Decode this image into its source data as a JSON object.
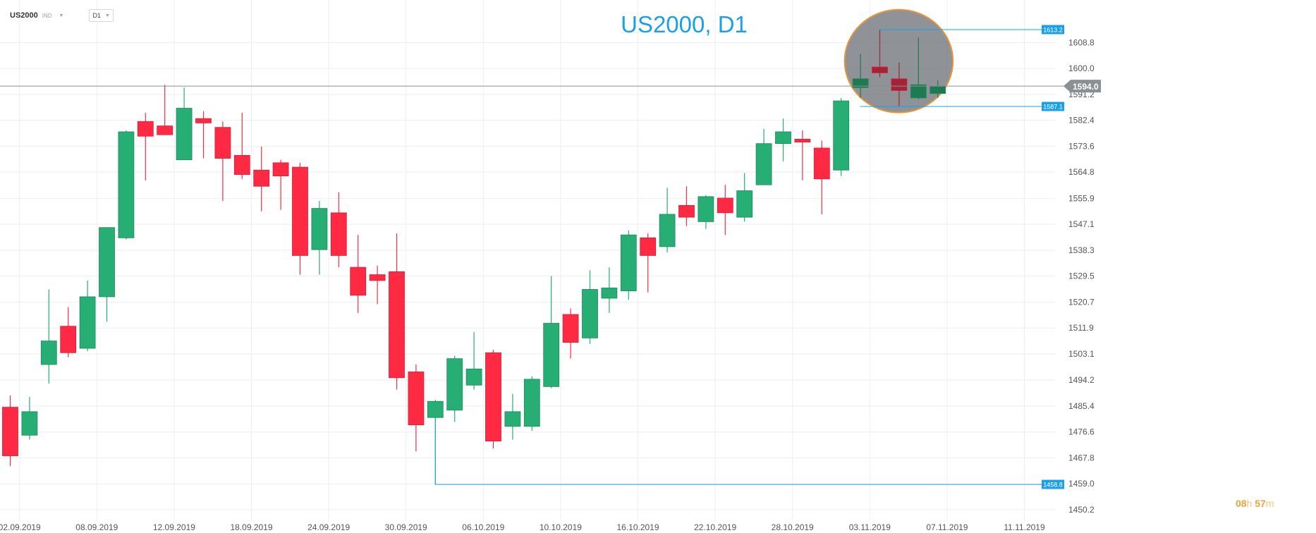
{
  "toolbar": {
    "symbol": "US2000",
    "symbol_type": "IND",
    "timeframe": "D1"
  },
  "title": "US2000, D1",
  "timer": {
    "hours": "08",
    "h_unit": "h",
    "minutes": "57",
    "m_unit": "m"
  },
  "colors": {
    "up": "#27ae74",
    "down": "#fe2a44",
    "accent": "#1ba0e8",
    "grid": "#eeeeee",
    "text": "#555555"
  },
  "chart_data": {
    "type": "candlestick",
    "title": "US2000, D1",
    "ylim": [
      1450.2,
      1617.5
    ],
    "y_ticks": [
      1608.8,
      1600.0,
      1591.2,
      1582.4,
      1573.6,
      1564.8,
      1555.9,
      1547.1,
      1538.3,
      1529.5,
      1520.7,
      1511.9,
      1503.1,
      1494.2,
      1485.4,
      1476.6,
      1467.8,
      1459.0,
      1450.2
    ],
    "x_labels": [
      "02.09.2019",
      "08.09.2019",
      "12.09.2019",
      "18.09.2019",
      "24.09.2019",
      "30.09.2019",
      "06.10.2019",
      "10.10.2019",
      "16.10.2019",
      "22.10.2019",
      "28.10.2019",
      "03.11.2019",
      "07.11.2019",
      "11.11.2019"
    ],
    "x_label_index": [
      0.5,
      4.5,
      8.5,
      12.5,
      16.5,
      20.5,
      24.5,
      28.5,
      32.5,
      36.5,
      40.5,
      44.5,
      48.5,
      52.5
    ],
    "candles": [
      {
        "o": 1485.0,
        "h": 1489.0,
        "l": 1465.0,
        "c": 1468.5
      },
      {
        "o": 1475.5,
        "h": 1488.5,
        "l": 1474.0,
        "c": 1483.5
      },
      {
        "o": 1499.5,
        "h": 1525.0,
        "l": 1493.0,
        "c": 1507.5
      },
      {
        "o": 1512.5,
        "h": 1519.0,
        "l": 1502.0,
        "c": 1503.5
      },
      {
        "o": 1505.0,
        "h": 1528.0,
        "l": 1504.0,
        "c": 1522.5
      },
      {
        "o": 1522.5,
        "h": 1546.0,
        "l": 1514.0,
        "c": 1546.0
      },
      {
        "o": 1542.5,
        "h": 1579.0,
        "l": 1542.0,
        "c": 1578.5
      },
      {
        "o": 1582.0,
        "h": 1585.0,
        "l": 1562.0,
        "c": 1577.0
      },
      {
        "o": 1580.5,
        "h": 1594.5,
        "l": 1578.0,
        "c": 1577.5
      },
      {
        "o": 1569.0,
        "h": 1593.5,
        "l": 1569.0,
        "c": 1586.5
      },
      {
        "o": 1583.0,
        "h": 1585.5,
        "l": 1569.5,
        "c": 1581.5
      },
      {
        "o": 1580.0,
        "h": 1582.0,
        "l": 1555.0,
        "c": 1569.5
      },
      {
        "o": 1570.5,
        "h": 1585.0,
        "l": 1562.5,
        "c": 1564.0
      },
      {
        "o": 1565.5,
        "h": 1573.5,
        "l": 1551.5,
        "c": 1560.0
      },
      {
        "o": 1568.0,
        "h": 1569.0,
        "l": 1552.0,
        "c": 1563.5
      },
      {
        "o": 1566.5,
        "h": 1568.0,
        "l": 1530.0,
        "c": 1536.5
      },
      {
        "o": 1538.5,
        "h": 1555.0,
        "l": 1530.0,
        "c": 1552.5
      },
      {
        "o": 1551.0,
        "h": 1558.0,
        "l": 1532.5,
        "c": 1536.5
      },
      {
        "o": 1532.5,
        "h": 1543.5,
        "l": 1517.0,
        "c": 1523.0
      },
      {
        "o": 1530.0,
        "h": 1533.0,
        "l": 1520.0,
        "c": 1528.0
      },
      {
        "o": 1531.0,
        "h": 1544.0,
        "l": 1491.0,
        "c": 1495.0
      },
      {
        "o": 1497.0,
        "h": 1499.5,
        "l": 1470.0,
        "c": 1479.0
      },
      {
        "o": 1481.5,
        "h": 1487.5,
        "l": 1458.8,
        "c": 1487.0
      },
      {
        "o": 1484.0,
        "h": 1502.5,
        "l": 1480.0,
        "c": 1501.5
      },
      {
        "o": 1492.5,
        "h": 1510.5,
        "l": 1491.0,
        "c": 1498.0
      },
      {
        "o": 1503.5,
        "h": 1504.5,
        "l": 1471.0,
        "c": 1473.5
      },
      {
        "o": 1478.5,
        "h": 1489.5,
        "l": 1474.0,
        "c": 1483.5
      },
      {
        "o": 1478.5,
        "h": 1495.5,
        "l": 1477.0,
        "c": 1494.5
      },
      {
        "o": 1492.0,
        "h": 1529.5,
        "l": 1491.5,
        "c": 1513.5
      },
      {
        "o": 1516.5,
        "h": 1518.5,
        "l": 1501.5,
        "c": 1507.0
      },
      {
        "o": 1508.5,
        "h": 1531.5,
        "l": 1506.5,
        "c": 1525.0
      },
      {
        "o": 1522.0,
        "h": 1532.5,
        "l": 1517.0,
        "c": 1525.5
      },
      {
        "o": 1524.5,
        "h": 1545.0,
        "l": 1521.5,
        "c": 1543.5
      },
      {
        "o": 1542.5,
        "h": 1544.0,
        "l": 1524.0,
        "c": 1536.5
      },
      {
        "o": 1539.5,
        "h": 1559.5,
        "l": 1537.5,
        "c": 1550.5
      },
      {
        "o": 1553.5,
        "h": 1560.0,
        "l": 1546.5,
        "c": 1549.5
      },
      {
        "o": 1548.0,
        "h": 1557.0,
        "l": 1545.5,
        "c": 1556.5
      },
      {
        "o": 1556.0,
        "h": 1560.5,
        "l": 1543.5,
        "c": 1551.0
      },
      {
        "o": 1549.5,
        "h": 1564.5,
        "l": 1548.0,
        "c": 1558.5
      },
      {
        "o": 1560.5,
        "h": 1579.5,
        "l": 1560.5,
        "c": 1574.5
      },
      {
        "o": 1574.5,
        "h": 1583.0,
        "l": 1568.5,
        "c": 1578.5
      },
      {
        "o": 1576.0,
        "h": 1579.0,
        "l": 1562.0,
        "c": 1575.0
      },
      {
        "o": 1573.0,
        "h": 1575.5,
        "l": 1550.5,
        "c": 1562.5
      },
      {
        "o": 1565.5,
        "h": 1590.0,
        "l": 1563.5,
        "c": 1589.0
      },
      {
        "o": 1593.5,
        "h": 1605.0,
        "l": 1590.0,
        "c": 1596.5
      },
      {
        "o": 1600.5,
        "h": 1613.2,
        "l": 1597.0,
        "c": 1598.5
      },
      {
        "o": 1596.5,
        "h": 1602.0,
        "l": 1587.1,
        "c": 1592.5
      },
      {
        "o": 1590.0,
        "h": 1610.5,
        "l": 1589.5,
        "c": 1594.5
      },
      {
        "o": 1591.5,
        "h": 1596.0,
        "l": 1590.0,
        "c": 1594.0
      }
    ],
    "current_price": 1594.0,
    "price_labels": [
      {
        "label": "1613.2",
        "value": 1613.2,
        "from_index": 45
      },
      {
        "label": "1587.1",
        "value": 1587.1,
        "from_index": 44
      },
      {
        "label": "1458.8",
        "value": 1458.8,
        "from_index": 22
      }
    ],
    "highlight": {
      "shape": "ellipse",
      "from_index": 44,
      "to_index": 48
    },
    "grid": true
  }
}
